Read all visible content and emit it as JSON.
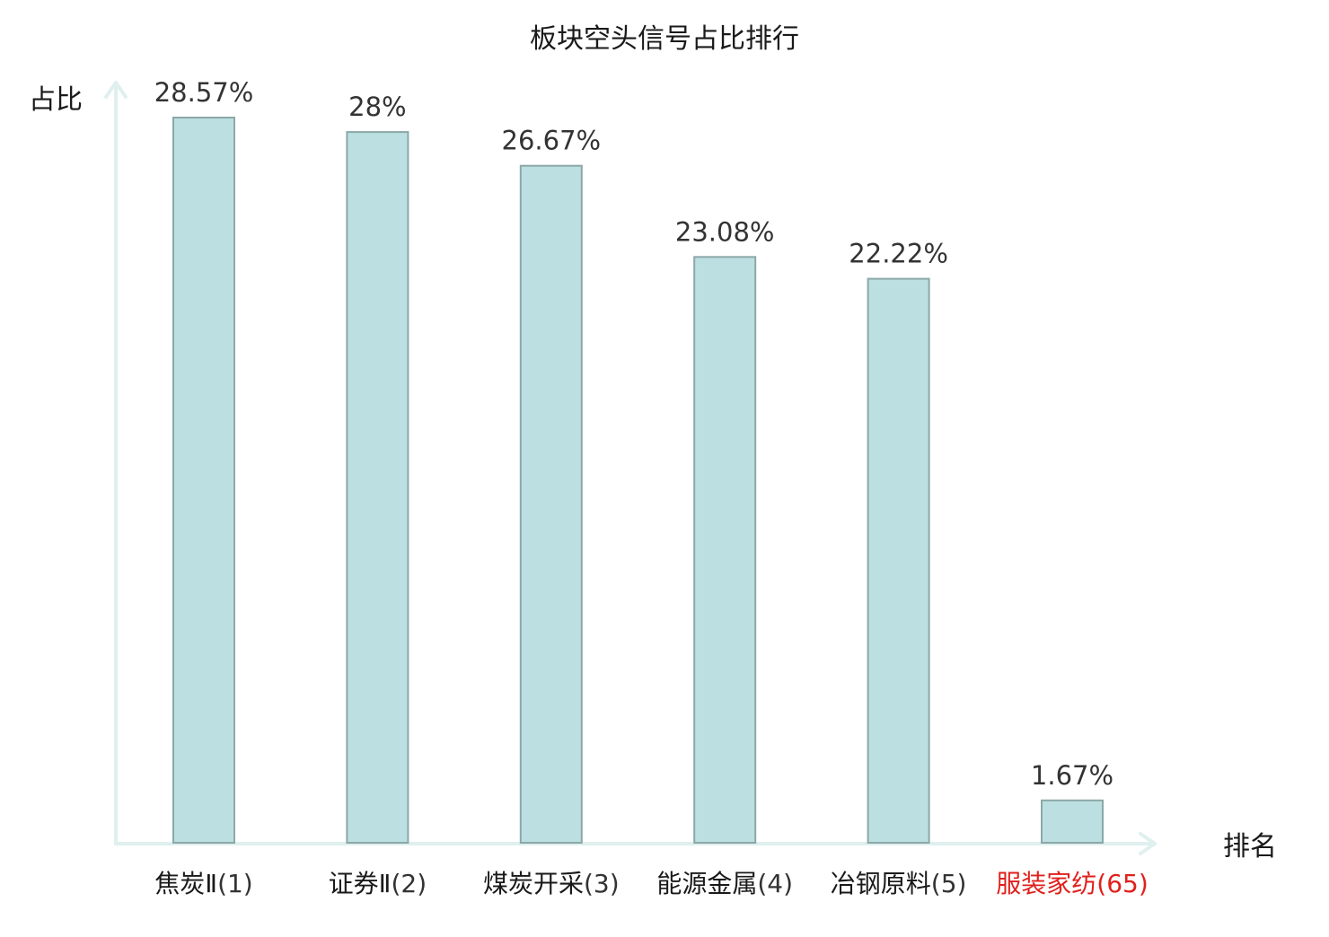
{
  "chart_data": {
    "type": "bar",
    "title": "板块空头信号占比排行",
    "xlabel": "排名",
    "ylabel": "占比",
    "categories": [
      {
        "name": "焦炭Ⅱ",
        "rank": "(1)",
        "highlight": false
      },
      {
        "name": "证券Ⅱ",
        "rank": "(2)",
        "highlight": false
      },
      {
        "name": "煤炭开采",
        "rank": "(3)",
        "highlight": false
      },
      {
        "name": "能源金属",
        "rank": "(4)",
        "highlight": false
      },
      {
        "name": "冶钢原料",
        "rank": "(5)",
        "highlight": false
      },
      {
        "name": "服装家纺",
        "rank": "(65)",
        "highlight": true
      }
    ],
    "values": [
      28.57,
      28,
      26.67,
      23.08,
      22.22,
      1.67
    ],
    "value_labels": [
      "28.57%",
      "28%",
      "26.67%",
      "23.08%",
      "22.22%",
      "1.67%"
    ],
    "ylim": [
      0,
      28.57
    ],
    "grid": false,
    "colors": {
      "bar_fill": "#bce0e2",
      "bar_stroke": "#8ca7a8",
      "axis": "#dff0ee",
      "label_text": "#1a1a1a",
      "value_text": "#333333",
      "highlight_text": "#e0201c"
    }
  }
}
